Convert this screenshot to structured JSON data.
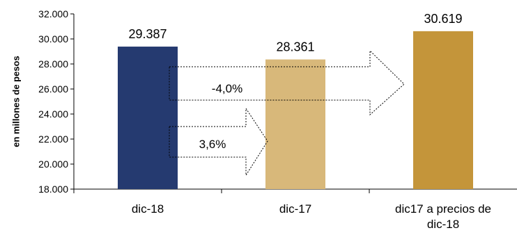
{
  "chart_data": {
    "type": "bar",
    "ylabel": "en millones de pesos",
    "ylim": [
      18000,
      32000
    ],
    "yticks": [
      18000,
      20000,
      22000,
      24000,
      26000,
      28000,
      30000,
      32000
    ],
    "ytick_labels": [
      "18.000",
      "20.000",
      "22.000",
      "24.000",
      "26.000",
      "28.000",
      "30.000",
      "32.000"
    ],
    "categories": [
      [
        "dic-18"
      ],
      [
        "dic-17"
      ],
      [
        "dic17 a precios de",
        "dic-18"
      ]
    ],
    "values": [
      29387,
      28361,
      30619
    ],
    "value_labels": [
      "29.387",
      "28.361",
      "30.619"
    ],
    "colors": [
      "#253A70",
      "#D8B87A",
      "#C4953A"
    ],
    "grid": false,
    "annotations": [
      {
        "text": "-4,0%",
        "from": "dic-17",
        "to": "dic17 a precios de dic-18"
      },
      {
        "text": "3,6%",
        "from": "dic-18",
        "to": "dic-17"
      }
    ]
  }
}
